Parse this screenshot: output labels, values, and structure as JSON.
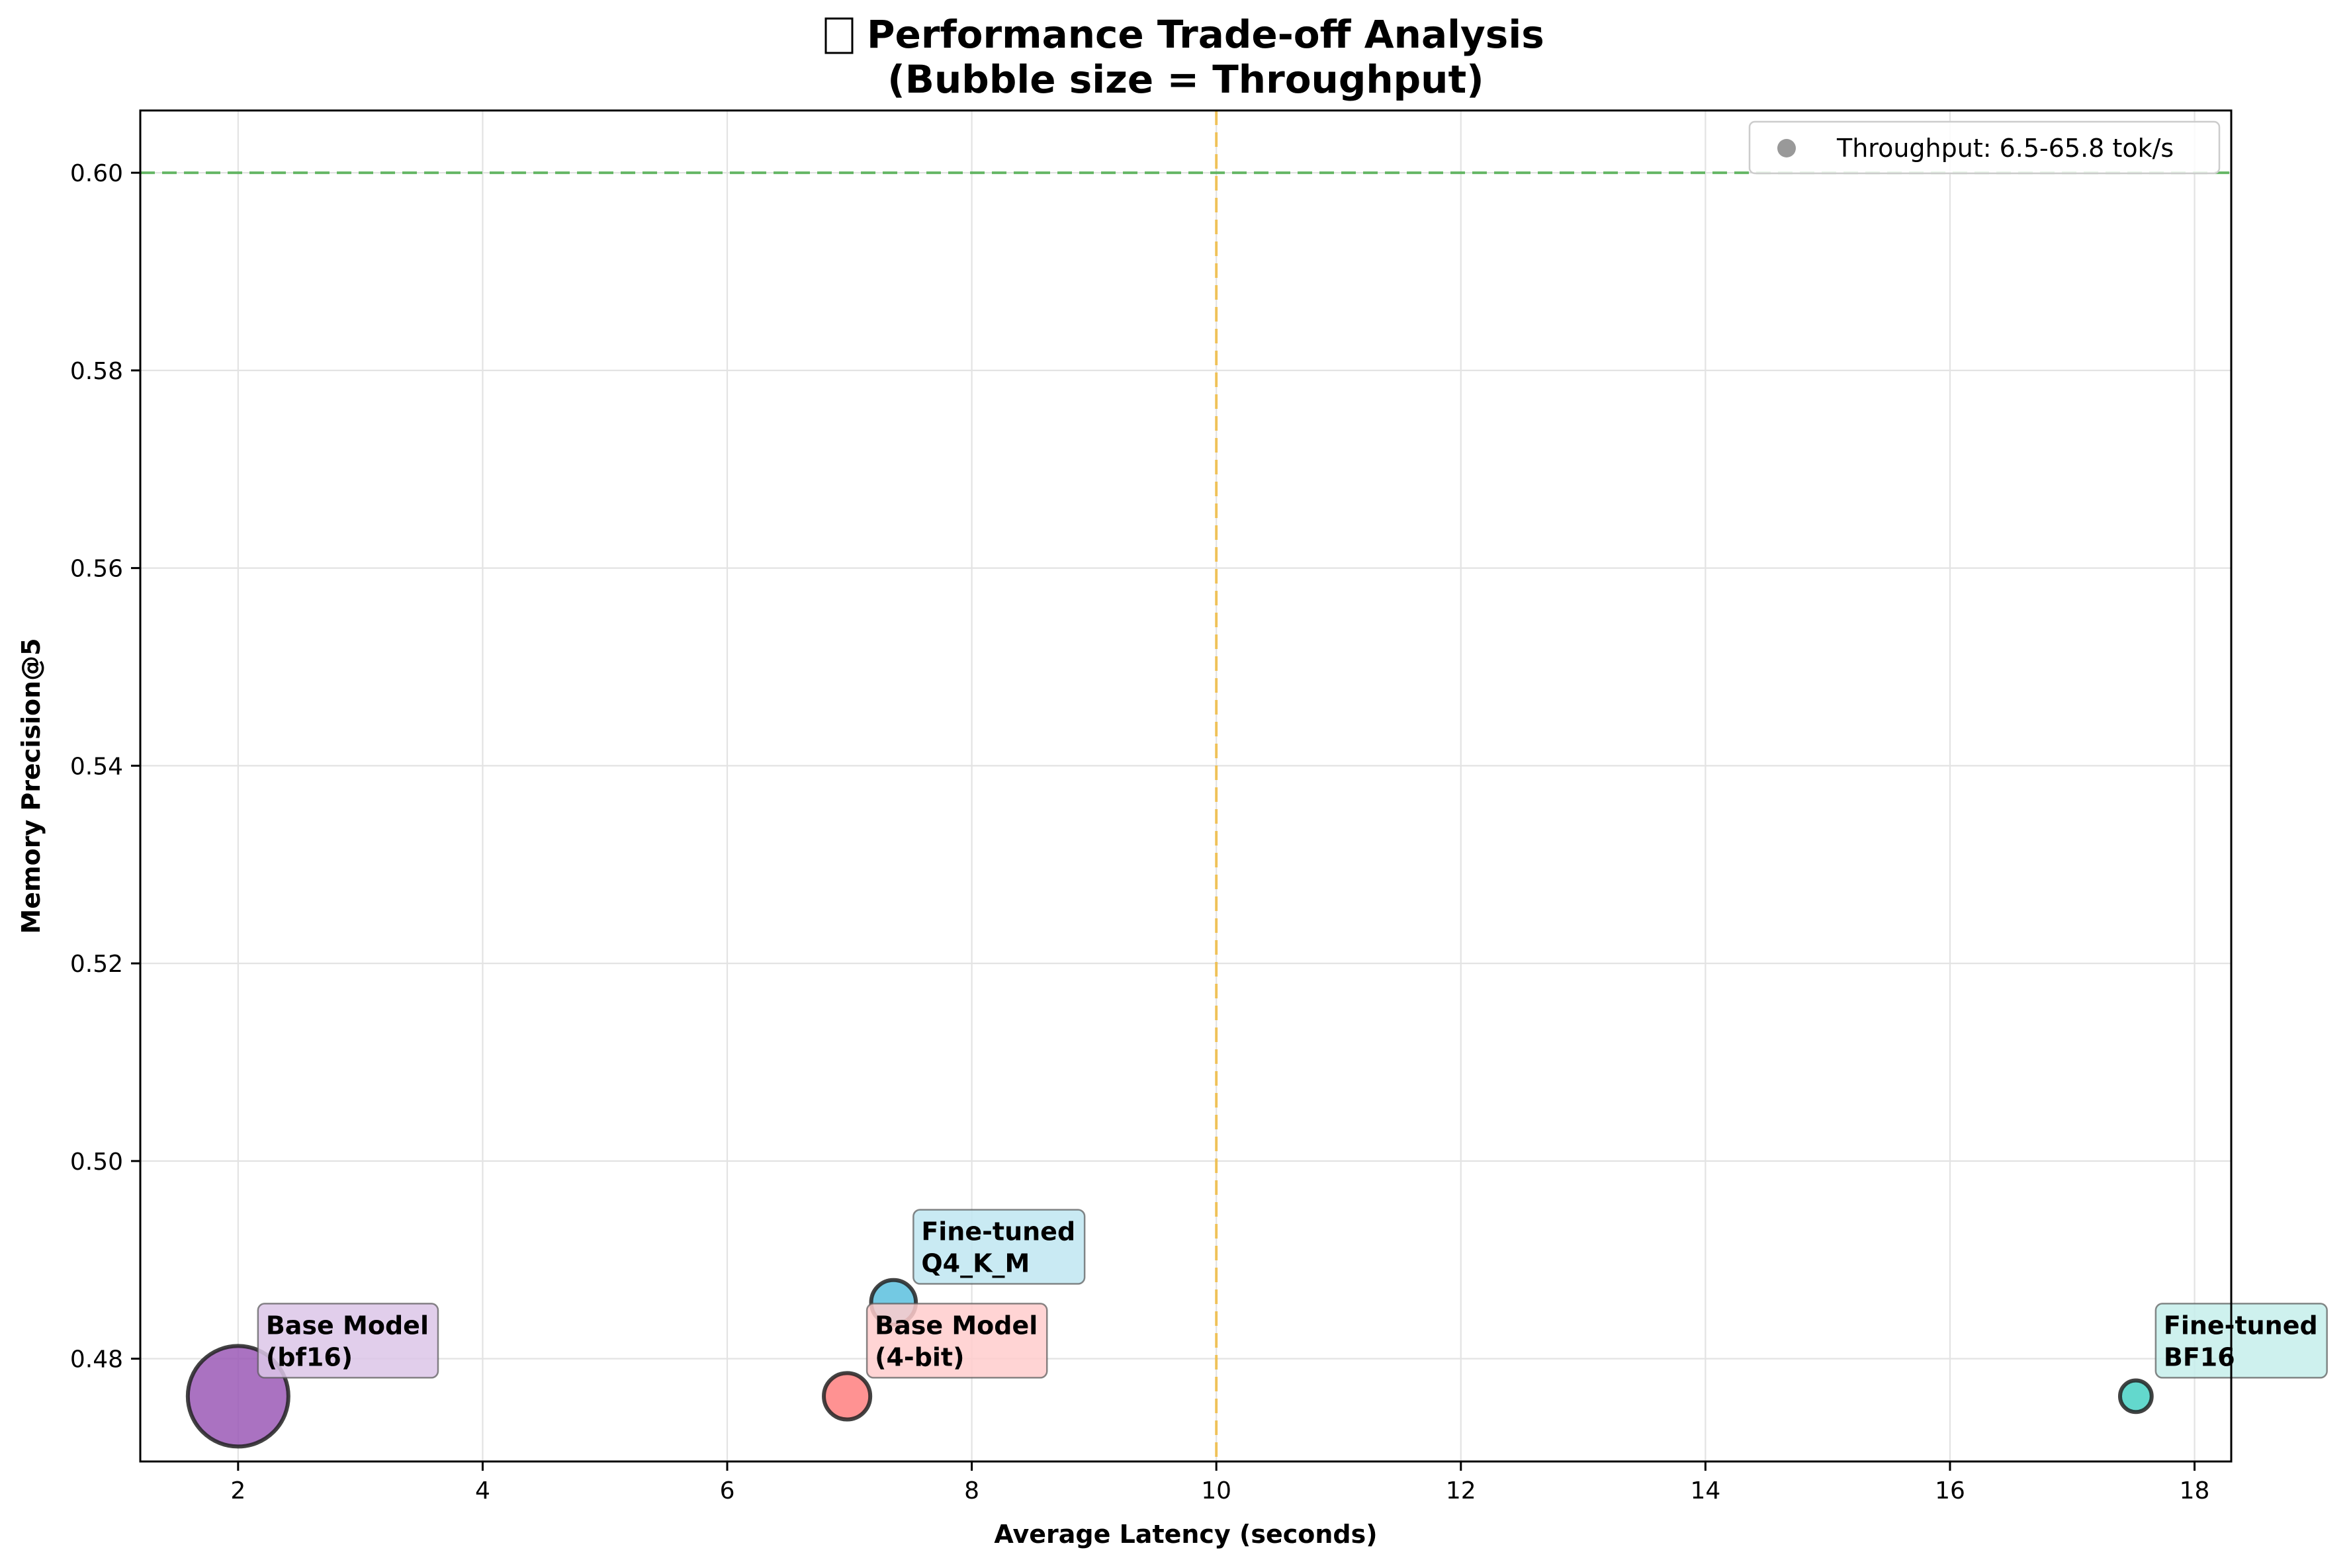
{
  "chart_data": {
    "type": "scatter",
    "title": "Performance Trade-off Analysis",
    "title_icon": "chart-emoji",
    "subtitle": "(Bubble size = Throughput)",
    "xlabel": "Average Latency (seconds)",
    "ylabel": "Memory Precision@5",
    "xlim": [
      1.2,
      18.3
    ],
    "ylim": [
      0.4696,
      0.6063
    ],
    "xticks": [
      2,
      4,
      6,
      8,
      10,
      12,
      14,
      16,
      18
    ],
    "yticks": [
      0.48,
      0.5,
      0.52,
      0.54,
      0.56,
      0.58,
      0.6
    ],
    "xtick_labels": [
      "2",
      "4",
      "6",
      "8",
      "10",
      "12",
      "14",
      "16",
      "18"
    ],
    "ytick_labels": [
      "0.48",
      "0.50",
      "0.52",
      "0.54",
      "0.56",
      "0.58",
      "0.60"
    ],
    "grid": true,
    "reference_lines": [
      {
        "orientation": "horizontal",
        "value": 0.6,
        "color": "#2ca02c",
        "style": "dashed"
      },
      {
        "orientation": "vertical",
        "value": 10,
        "color": "#f0b429",
        "style": "dashed"
      }
    ],
    "legend": {
      "position": "top-right",
      "entries": [
        "Throughput: 6.5-65.8 tok/s"
      ]
    },
    "points": [
      {
        "label_lines": [
          "Base Model",
          "(bf16)"
        ],
        "x": 2.0,
        "y": 0.4762,
        "throughput": 65.8,
        "color": "#9b59b6",
        "label_bg": "#dcc6e8"
      },
      {
        "label_lines": [
          "Base Model",
          "(4-bit)"
        ],
        "x": 6.98,
        "y": 0.4762,
        "throughput": 14.0,
        "color": "#ff7f7f",
        "label_bg": "#ffcccc"
      },
      {
        "label_lines": [
          "Fine-tuned",
          "Q4_K_M"
        ],
        "x": 7.36,
        "y": 0.4857,
        "throughput": 13.0,
        "color": "#5bc0de",
        "label_bg": "#bfe6f1"
      },
      {
        "label_lines": [
          "Fine-tuned",
          "BF16"
        ],
        "x": 17.52,
        "y": 0.4762,
        "throughput": 6.5,
        "color": "#48d1c4",
        "label_bg": "#c6efeb"
      }
    ]
  }
}
